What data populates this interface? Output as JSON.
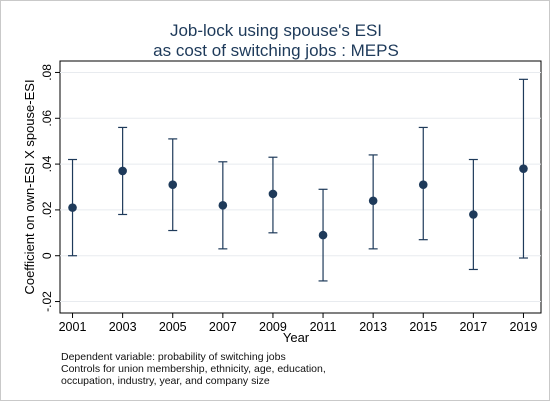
{
  "chart_data": {
    "type": "errorbar",
    "title": [
      "Job-lock using spouse's ESI",
      "as cost of switching jobs : MEPS"
    ],
    "xlabel": "Year",
    "ylabel": "Coefficient on own-ESI X spouse-ESI",
    "xlim": [
      2000.5,
      2019.7
    ],
    "ylim": [
      -0.025,
      0.085
    ],
    "x": [
      "2001",
      "2003",
      "2005",
      "2007",
      "2009",
      "2011",
      "2013",
      "2015",
      "2017",
      "2019"
    ],
    "values": [
      0.021,
      0.037,
      0.031,
      0.022,
      0.027,
      0.009,
      0.024,
      0.031,
      0.018,
      0.038
    ],
    "lower": [
      0.0,
      0.018,
      0.011,
      0.003,
      0.01,
      -0.011,
      0.003,
      0.007,
      -0.006,
      -0.001
    ],
    "upper": [
      0.042,
      0.056,
      0.051,
      0.041,
      0.043,
      0.029,
      0.044,
      0.056,
      0.042,
      0.077
    ],
    "yticks": [
      -0.02,
      0,
      0.02,
      0.04,
      0.06,
      0.08
    ],
    "ytick_labels": [
      "-.02",
      "0",
      ".02",
      ".04",
      ".06",
      ".08"
    ],
    "grid": "horizontal",
    "colors": {
      "marker": "#1e3a5a",
      "grid": "#e8ebef",
      "axis": "#000000"
    }
  },
  "notes": [
    "Dependent variable: probability of switching jobs",
    "Controls for union membership, ethnicity, age, education,",
    "occupation, industry, year, and company size"
  ]
}
